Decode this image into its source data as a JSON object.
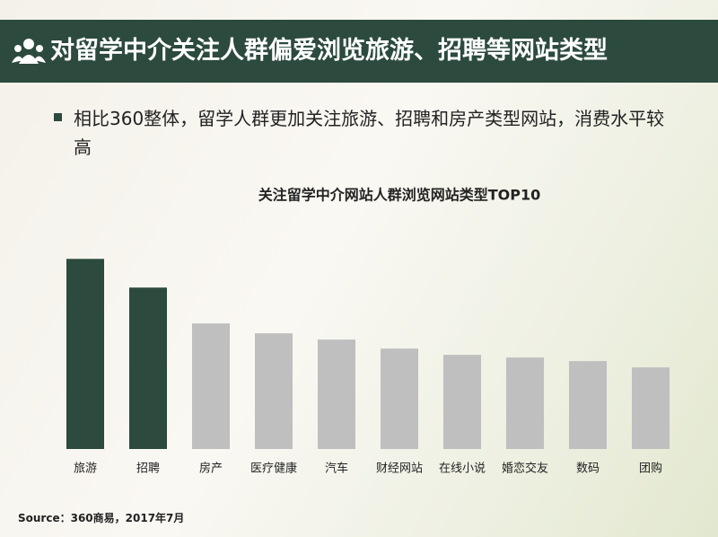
{
  "header": {
    "title": "对留学中介关注人群偏爱浏览旅游、招聘等网站类型"
  },
  "bullet": "相比360整体，留学人群更加关注旅游、招聘和房产类型网站，消费水平较高",
  "chart_data": {
    "type": "bar",
    "title": "关注留学中介网站人群浏览网站类型TOP10",
    "categories": [
      "旅游",
      "招聘",
      "房产",
      "医疗健康",
      "汽车",
      "财经网站",
      "在线小说",
      "婚恋交友",
      "数码",
      "团购"
    ],
    "values": [
      212,
      180,
      140,
      129,
      122,
      112,
      105,
      102,
      98,
      91
    ],
    "colors": [
      "#2c4a3e",
      "#2c4a3e",
      "#bfbfbf",
      "#bfbfbf",
      "#bfbfbf",
      "#bfbfbf",
      "#bfbfbf",
      "#bfbfbf",
      "#bfbfbf",
      "#bfbfbf"
    ],
    "ylim": [
      0,
      220
    ]
  },
  "source": "Source：360商易，2017年7月"
}
